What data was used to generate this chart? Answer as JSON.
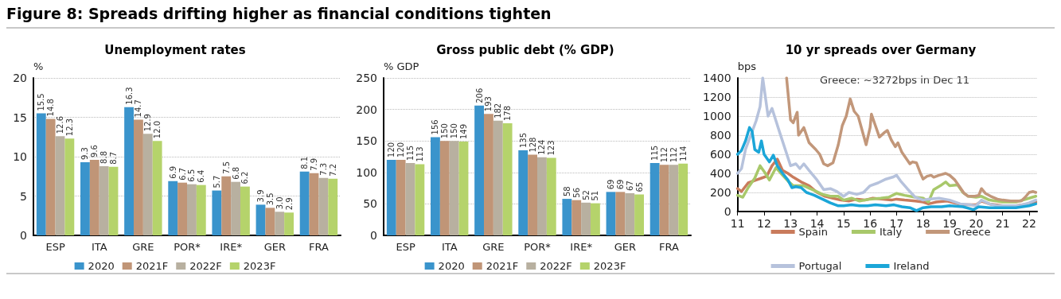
{
  "chart_data": [
    {
      "type": "bar",
      "title": "Unemployment rates",
      "ylabel": "%",
      "annotations": [
        "Figure 8: Spreads drifting higher as financial conditions tighten"
      ],
      "categories": [
        "ESP",
        "ITA",
        "GRE",
        "POR*",
        "IRE*",
        "GER",
        "FRA"
      ],
      "series": [
        {
          "name": "2020",
          "color": "#3a94cc",
          "values": [
            15.5,
            9.3,
            16.3,
            6.9,
            5.7,
            3.9,
            8.1
          ],
          "value_labels": [
            "15.5",
            "9.3",
            "16.3",
            "6.9",
            "5.7",
            "3.9",
            "8.1"
          ]
        },
        {
          "name": "2021F",
          "color": "#c09577",
          "values": [
            14.8,
            9.6,
            14.7,
            6.7,
            7.5,
            3.5,
            7.9
          ],
          "value_labels": [
            "14.8",
            "9.6",
            "14.7",
            "6.7",
            "7.5",
            "3.5",
            "7.9"
          ]
        },
        {
          "name": "2022F",
          "color": "#b8b0a0",
          "values": [
            12.6,
            8.8,
            12.9,
            6.5,
            6.8,
            3.0,
            7.3
          ],
          "value_labels": [
            "12.6",
            "8.8",
            "12.9",
            "6.5",
            "6.8",
            "3.0",
            "7.3"
          ]
        },
        {
          "name": "2023F",
          "color": "#b5d36b",
          "values": [
            12.3,
            8.7,
            12.0,
            6.4,
            6.2,
            2.9,
            7.2
          ],
          "value_labels": [
            "12.3",
            "8.7",
            "12.0",
            "6.4",
            "6.2",
            "2.9",
            "7.2"
          ]
        }
      ],
      "ylim": [
        0,
        20
      ],
      "yticks": [
        0,
        5,
        10,
        15,
        20
      ],
      "grid": "y",
      "legend": "bottom"
    },
    {
      "type": "bar",
      "title": "Gross public debt (% GDP)",
      "ylabel": "% GDP",
      "categories": [
        "ESP",
        "ITA",
        "GRE",
        "POR*",
        "IRE*",
        "GER",
        "FRA"
      ],
      "series": [
        {
          "name": "2020",
          "color": "#3a94cc",
          "values": [
            120,
            156,
            206,
            135,
            58,
            69,
            115
          ]
        },
        {
          "name": "2021F",
          "color": "#c09577",
          "values": [
            120,
            150,
            193,
            128,
            56,
            69,
            112
          ]
        },
        {
          "name": "2022F",
          "color": "#b8b0a0",
          "values": [
            115,
            150,
            182,
            124,
            52,
            67,
            112
          ]
        },
        {
          "name": "2023F",
          "color": "#b5d36b",
          "values": [
            113,
            149,
            178,
            123,
            51,
            65,
            114
          ]
        }
      ],
      "ylim": [
        0,
        250
      ],
      "yticks": [
        0,
        50,
        100,
        150,
        200,
        250
      ],
      "grid": "y",
      "legend": "bottom",
      "data_labels": true
    },
    {
      "type": "line",
      "title": "10 yr spreads over Germany",
      "ylabel": "bps",
      "annotations": [
        "Greece: ~3272bps in Dec 11"
      ],
      "marker": "none",
      "line_style": "solid",
      "grid": "y",
      "legend": "bottom",
      "xlim": [
        2011,
        2022.3
      ],
      "xticks": [
        {
          "value": 2011,
          "label": "11"
        },
        {
          "value": 2012,
          "label": "12"
        },
        {
          "value": 2013,
          "label": "13"
        },
        {
          "value": 2014,
          "label": "14"
        },
        {
          "value": 2015,
          "label": "15"
        },
        {
          "value": 2016,
          "label": "16"
        },
        {
          "value": 2017,
          "label": "17"
        },
        {
          "value": 2018,
          "label": "18"
        },
        {
          "value": 2019,
          "label": "19"
        },
        {
          "value": 2020,
          "label": "20"
        },
        {
          "value": 2021,
          "label": "21"
        },
        {
          "value": 2022,
          "label": "22"
        }
      ],
      "ylim": [
        0,
        1400
      ],
      "yticks": [
        0,
        200,
        400,
        600,
        800,
        1000,
        1200,
        1400
      ],
      "series": [
        {
          "name": "Spain",
          "color": "#c97b5c",
          "x": [
            2011.0,
            2011.15,
            2011.4,
            2011.7,
            2011.9,
            2012.1,
            2012.3,
            2012.5,
            2012.7,
            2012.9,
            2013.1,
            2013.4,
            2013.7,
            2014.0,
            2014.3,
            2014.6,
            2014.9,
            2015.2,
            2015.5,
            2015.8,
            2016.1,
            2016.5,
            2016.8,
            2017.0,
            2017.3,
            2017.7,
            2018.0,
            2018.2,
            2018.5,
            2018.9,
            2019.2,
            2019.5,
            2020.0,
            2020.2,
            2020.5,
            2021.0,
            2021.5,
            2022.0,
            2022.25
          ],
          "values": [
            240,
            210,
            300,
            330,
            350,
            370,
            480,
            550,
            430,
            400,
            360,
            310,
            270,
            200,
            160,
            140,
            120,
            110,
            130,
            120,
            140,
            130,
            120,
            130,
            120,
            110,
            100,
            80,
            100,
            110,
            90,
            70,
            70,
            110,
            80,
            60,
            60,
            80,
            100
          ]
        },
        {
          "name": "Italy",
          "color": "#a8c86a",
          "x": [
            2011.0,
            2011.2,
            2011.4,
            2011.65,
            2011.85,
            2012.05,
            2012.2,
            2012.45,
            2012.7,
            2012.9,
            2013.1,
            2013.5,
            2013.9,
            2014.2,
            2014.5,
            2014.8,
            2015.0,
            2015.3,
            2015.6,
            2016.0,
            2016.4,
            2016.7,
            2017.0,
            2017.3,
            2017.7,
            2018.0,
            2018.2,
            2018.4,
            2018.7,
            2018.85,
            2019.0,
            2019.3,
            2019.5,
            2019.7,
            2020.0,
            2020.2,
            2020.5,
            2021.0,
            2021.5,
            2022.0,
            2022.25
          ],
          "values": [
            170,
            150,
            250,
            350,
            480,
            400,
            330,
            460,
            380,
            320,
            270,
            270,
            220,
            180,
            160,
            160,
            120,
            140,
            110,
            130,
            140,
            150,
            190,
            170,
            150,
            140,
            100,
            230,
            280,
            310,
            270,
            280,
            200,
            160,
            150,
            160,
            120,
            100,
            100,
            140,
            160
          ]
        },
        {
          "name": "Greece",
          "color": "#c2977a",
          "x": [
            2012.85,
            2013.0,
            2013.1,
            2013.25,
            2013.3,
            2013.5,
            2013.7,
            2013.95,
            2014.1,
            2014.25,
            2014.4,
            2014.6,
            2014.8,
            2014.95,
            2015.1,
            2015.25,
            2015.4,
            2015.55,
            2015.75,
            2015.85,
            2016.0,
            2016.05,
            2016.2,
            2016.35,
            2016.55,
            2016.65,
            2016.8,
            2016.95,
            2017.05,
            2017.2,
            2017.35,
            2017.5,
            2017.6,
            2017.75,
            2017.9,
            2018.0,
            2018.15,
            2018.3,
            2018.4,
            2018.6,
            2018.85,
            2019.0,
            2019.2,
            2019.4,
            2019.55,
            2019.7,
            2019.95,
            2020.1,
            2020.2,
            2020.35,
            2020.55,
            2020.8,
            2021.0,
            2021.3,
            2021.5,
            2021.7,
            2021.85,
            2022.0,
            2022.15,
            2022.25
          ],
          "values": [
            1400,
            960,
            930,
            1040,
            800,
            880,
            720,
            650,
            600,
            500,
            480,
            510,
            700,
            900,
            1000,
            1180,
            1050,
            1000,
            800,
            700,
            880,
            1020,
            900,
            780,
            830,
            850,
            750,
            680,
            720,
            620,
            560,
            500,
            520,
            510,
            400,
            340,
            370,
            380,
            360,
            380,
            400,
            380,
            330,
            250,
            190,
            160,
            160,
            170,
            240,
            190,
            160,
            130,
            120,
            110,
            110,
            110,
            150,
            200,
            210,
            200
          ]
        },
        {
          "name": "Portugal",
          "color": "#b6c2dc",
          "x": [
            2011.0,
            2011.15,
            2011.3,
            2011.5,
            2011.7,
            2011.85,
            2011.95,
            2012.05,
            2012.15,
            2012.3,
            2012.45,
            2012.6,
            2012.8,
            2013.0,
            2013.2,
            2013.35,
            2013.5,
            2013.7,
            2014.0,
            2014.25,
            2014.5,
            2014.75,
            2015.0,
            2015.2,
            2015.5,
            2015.75,
            2016.0,
            2016.3,
            2016.6,
            2016.85,
            2017.0,
            2017.15,
            2017.4,
            2017.7,
            2018.0,
            2018.2,
            2018.6,
            2019.0,
            2019.4,
            2019.8,
            2020.0,
            2020.2,
            2020.5,
            2020.8,
            2021.2,
            2021.6,
            2022.0,
            2022.25
          ],
          "values": [
            400,
            450,
            650,
            800,
            950,
            1100,
            1400,
            1200,
            1000,
            1080,
            950,
            820,
            650,
            480,
            500,
            450,
            500,
            430,
            330,
            230,
            240,
            210,
            160,
            200,
            180,
            200,
            270,
            300,
            340,
            360,
            380,
            320,
            240,
            150,
            120,
            130,
            140,
            120,
            80,
            70,
            60,
            120,
            80,
            60,
            60,
            60,
            90,
            120
          ]
        },
        {
          "name": "Ireland",
          "color": "#1ba6d8",
          "x": [
            2011.0,
            2011.15,
            2011.3,
            2011.45,
            2011.55,
            2011.65,
            2011.8,
            2011.9,
            2012.0,
            2012.2,
            2012.35,
            2012.5,
            2012.7,
            2012.9,
            2013.05,
            2013.2,
            2013.4,
            2013.6,
            2013.9,
            2014.2,
            2014.5,
            2014.8,
            2015.0,
            2015.3,
            2015.6,
            2015.9,
            2016.2,
            2016.6,
            2016.9,
            2017.2,
            2017.5,
            2017.75,
            2018.0,
            2018.3,
            2018.7,
            2019.0,
            2019.5,
            2019.9,
            2020.1,
            2020.5,
            2021.0,
            2021.5,
            2022.0,
            2022.25
          ],
          "values": [
            600,
            640,
            740,
            880,
            840,
            650,
            620,
            740,
            600,
            520,
            590,
            480,
            400,
            330,
            250,
            260,
            250,
            200,
            170,
            130,
            90,
            60,
            60,
            70,
            60,
            60,
            70,
            60,
            70,
            50,
            40,
            10,
            40,
            50,
            50,
            60,
            50,
            20,
            50,
            40,
            40,
            40,
            60,
            80
          ]
        }
      ]
    }
  ]
}
